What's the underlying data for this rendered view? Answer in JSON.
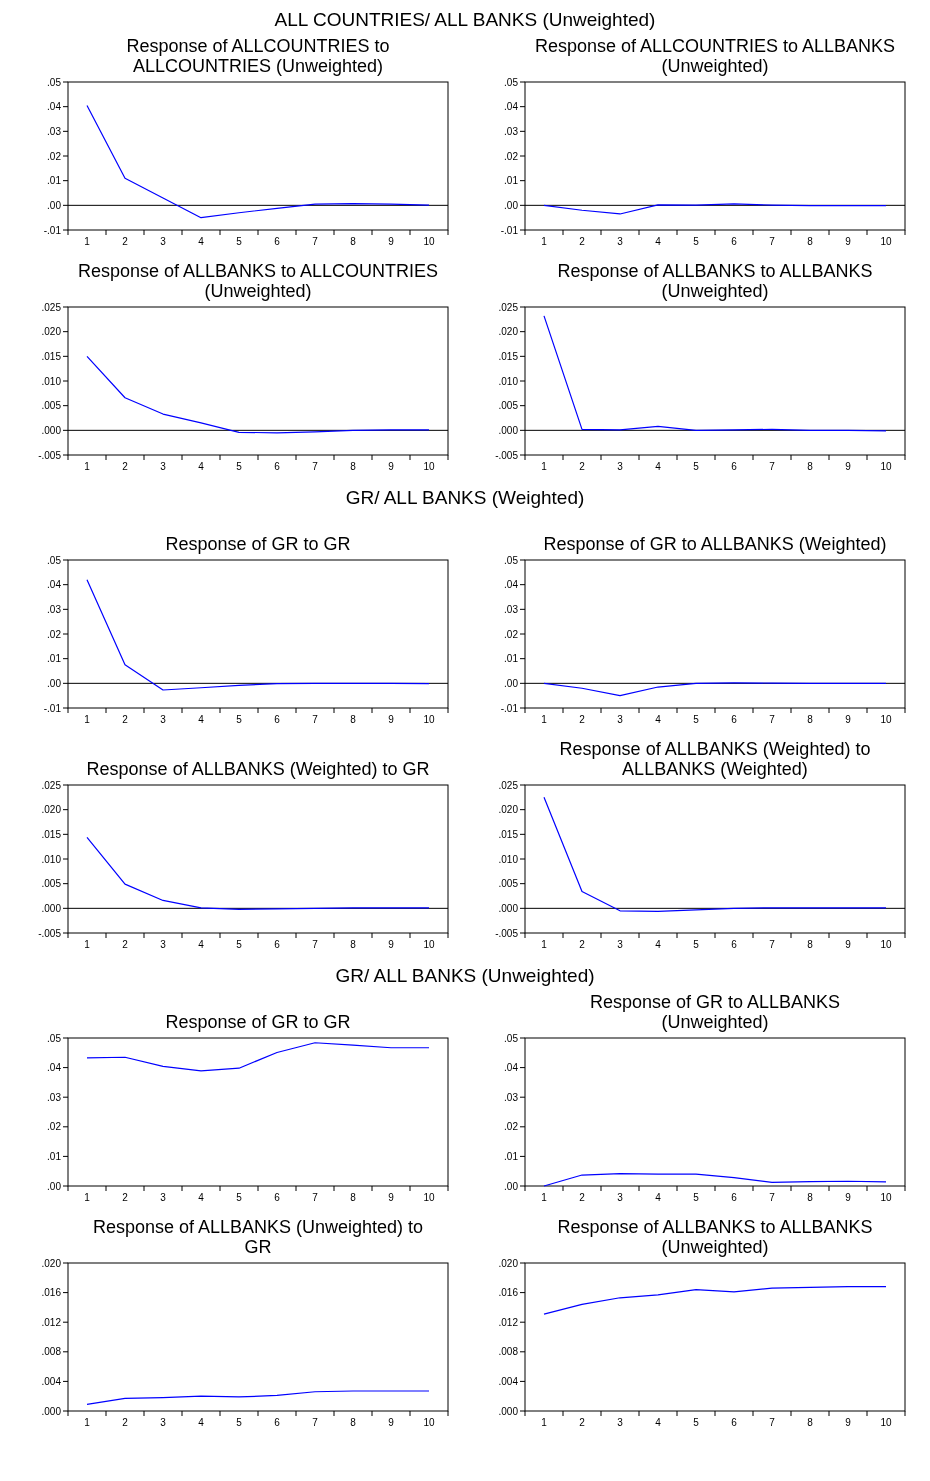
{
  "chart_data": [
    {
      "type": "line",
      "annotations": [
        "ALL COUNTRIES/ ALL BANKS (Unweighted)"
      ],
      "title": "Response of ALLCOUNTRIES to ALLCOUNTRIES (Unweighted)",
      "categories": [
        "1",
        "2",
        "3",
        "4",
        "5",
        "6",
        "7",
        "8",
        "9",
        "10"
      ],
      "series": [
        {
          "color": "#0000ff",
          "values": [
            0.0405,
            0.011,
            0.003,
            -0.005,
            -0.003,
            -0.0012,
            0.0005,
            0.0007,
            0.0005,
            0.0001
          ]
        }
      ],
      "ylim": [
        -0.01,
        0.05
      ],
      "yticks": [
        {
          "value": -0.01,
          "label": "-.01"
        },
        {
          "value": 0,
          "label": ".00"
        },
        {
          "value": 0.01,
          "label": ".01"
        },
        {
          "value": 0.02,
          "label": ".02"
        },
        {
          "value": 0.03,
          "label": ".03"
        },
        {
          "value": 0.04,
          "label": ".04"
        },
        {
          "value": 0.05,
          "label": ".05"
        }
      ],
      "ref_lines": [
        {
          "axis": "y",
          "value": 0,
          "color": "#000000"
        }
      ]
    },
    {
      "type": "line",
      "title": "Response of ALLCOUNTRIES to ALLBANKS (Unweighted)",
      "categories": [
        "1",
        "2",
        "3",
        "4",
        "5",
        "6",
        "7",
        "8",
        "9",
        "10"
      ],
      "series": [
        {
          "color": "#0000ff",
          "values": [
            0,
            -0.002,
            -0.0035,
            0.0002,
            0.0001,
            0.0006,
            0.0001,
            -0.0001,
            -0.0001,
            -0.0001
          ]
        }
      ],
      "ylim": [
        -0.01,
        0.05
      ],
      "yticks": [
        {
          "value": -0.01,
          "label": "-.01"
        },
        {
          "value": 0,
          "label": ".00"
        },
        {
          "value": 0.01,
          "label": ".01"
        },
        {
          "value": 0.02,
          "label": ".02"
        },
        {
          "value": 0.03,
          "label": ".03"
        },
        {
          "value": 0.04,
          "label": ".04"
        },
        {
          "value": 0.05,
          "label": ".05"
        }
      ],
      "ref_lines": [
        {
          "axis": "y",
          "value": 0,
          "color": "#000000"
        }
      ]
    },
    {
      "type": "line",
      "title": "Response of ALLBANKS to ALLCOUNTRIES (Unweighted)",
      "categories": [
        "1",
        "2",
        "3",
        "4",
        "5",
        "6",
        "7",
        "8",
        "9",
        "10"
      ],
      "series": [
        {
          "color": "#0000ff",
          "values": [
            0.015,
            0.0066,
            0.0033,
            0.0015,
            -0.0004,
            -0.0005,
            -0.0003,
            0,
            0.0001,
            0.0001
          ]
        }
      ],
      "ylim": [
        -0.005,
        0.025
      ],
      "yticks": [
        {
          "value": -0.005,
          "label": "-.005"
        },
        {
          "value": 0,
          "label": ".000"
        },
        {
          "value": 0.005,
          "label": ".005"
        },
        {
          "value": 0.01,
          "label": ".010"
        },
        {
          "value": 0.015,
          "label": ".015"
        },
        {
          "value": 0.02,
          "label": ".020"
        },
        {
          "value": 0.025,
          "label": ".025"
        }
      ],
      "ref_lines": [
        {
          "axis": "y",
          "value": 0,
          "color": "#000000"
        }
      ]
    },
    {
      "type": "line",
      "title": "Response of ALLBANKS to ALLBANKS (Unweighted)",
      "categories": [
        "1",
        "2",
        "3",
        "4",
        "5",
        "6",
        "7",
        "8",
        "9",
        "10"
      ],
      "series": [
        {
          "color": "#0000ff",
          "values": [
            0.0232,
            0.0002,
            0.0001,
            0.0008,
            0,
            0.0001,
            0.0002,
            0,
            0,
            -0.0001
          ]
        }
      ],
      "ylim": [
        -0.005,
        0.025
      ],
      "yticks": [
        {
          "value": -0.005,
          "label": "-.005"
        },
        {
          "value": 0,
          "label": ".000"
        },
        {
          "value": 0.005,
          "label": ".005"
        },
        {
          "value": 0.01,
          "label": ".010"
        },
        {
          "value": 0.015,
          "label": ".015"
        },
        {
          "value": 0.02,
          "label": ".020"
        },
        {
          "value": 0.025,
          "label": ".025"
        }
      ],
      "ref_lines": [
        {
          "axis": "y",
          "value": 0,
          "color": "#000000"
        }
      ]
    },
    {
      "type": "line",
      "annotations": [
        "GR/ ALL BANKS (Weighted)"
      ],
      "title": "Response of GR to GR",
      "categories": [
        "1",
        "2",
        "3",
        "4",
        "5",
        "6",
        "7",
        "8",
        "9",
        "10"
      ],
      "series": [
        {
          "color": "#0000ff",
          "values": [
            0.042,
            0.0075,
            -0.0027,
            -0.0018,
            -0.0008,
            -0.0001,
            0,
            0,
            0,
            -0.0001
          ]
        }
      ],
      "ylim": [
        -0.01,
        0.05
      ],
      "yticks": [
        {
          "value": -0.01,
          "label": "-.01"
        },
        {
          "value": 0,
          "label": ".00"
        },
        {
          "value": 0.01,
          "label": ".01"
        },
        {
          "value": 0.02,
          "label": ".02"
        },
        {
          "value": 0.03,
          "label": ".03"
        },
        {
          "value": 0.04,
          "label": ".04"
        },
        {
          "value": 0.05,
          "label": ".05"
        }
      ],
      "ref_lines": [
        {
          "axis": "y",
          "value": 0,
          "color": "#000000"
        }
      ]
    },
    {
      "type": "line",
      "title": "Response of GR to ALLBANKS (Weighted)",
      "categories": [
        "1",
        "2",
        "3",
        "4",
        "5",
        "6",
        "7",
        "8",
        "9",
        "10"
      ],
      "series": [
        {
          "color": "#0000ff",
          "values": [
            0,
            -0.002,
            -0.005,
            -0.0015,
            0,
            0.0002,
            0.0001,
            0,
            0,
            0
          ]
        }
      ],
      "ylim": [
        -0.01,
        0.05
      ],
      "yticks": [
        {
          "value": -0.01,
          "label": "-.01"
        },
        {
          "value": 0,
          "label": ".00"
        },
        {
          "value": 0.01,
          "label": ".01"
        },
        {
          "value": 0.02,
          "label": ".02"
        },
        {
          "value": 0.03,
          "label": ".03"
        },
        {
          "value": 0.04,
          "label": ".04"
        },
        {
          "value": 0.05,
          "label": ".05"
        }
      ],
      "ref_lines": [
        {
          "axis": "y",
          "value": 0,
          "color": "#000000"
        }
      ]
    },
    {
      "type": "line",
      "title": "Response of ALLBANKS (Weighted) to GR",
      "categories": [
        "1",
        "2",
        "3",
        "4",
        "5",
        "6",
        "7",
        "8",
        "9",
        "10"
      ],
      "series": [
        {
          "color": "#0000ff",
          "values": [
            0.0144,
            0.0049,
            0.0016,
            0.0001,
            -0.0002,
            -0.0001,
            0,
            0.0001,
            0.0001,
            0.0001
          ]
        }
      ],
      "ylim": [
        -0.005,
        0.025
      ],
      "yticks": [
        {
          "value": -0.005,
          "label": "-.005"
        },
        {
          "value": 0,
          "label": ".000"
        },
        {
          "value": 0.005,
          "label": ".005"
        },
        {
          "value": 0.01,
          "label": ".010"
        },
        {
          "value": 0.015,
          "label": ".015"
        },
        {
          "value": 0.02,
          "label": ".020"
        },
        {
          "value": 0.025,
          "label": ".025"
        }
      ],
      "ref_lines": [
        {
          "axis": "y",
          "value": 0,
          "color": "#000000"
        }
      ]
    },
    {
      "type": "line",
      "title": "Response of ALLBANKS (Weighted) to ALLBANKS (Weighted)",
      "categories": [
        "1",
        "2",
        "3",
        "4",
        "5",
        "6",
        "7",
        "8",
        "9",
        "10"
      ],
      "series": [
        {
          "color": "#0000ff",
          "values": [
            0.0225,
            0.0034,
            -0.0005,
            -0.0006,
            -0.0003,
            0,
            0.0001,
            0.0001,
            0.0001,
            0.0001
          ]
        }
      ],
      "ylim": [
        -0.005,
        0.025
      ],
      "yticks": [
        {
          "value": -0.005,
          "label": "-.005"
        },
        {
          "value": 0,
          "label": ".000"
        },
        {
          "value": 0.005,
          "label": ".005"
        },
        {
          "value": 0.01,
          "label": ".010"
        },
        {
          "value": 0.015,
          "label": ".015"
        },
        {
          "value": 0.02,
          "label": ".020"
        },
        {
          "value": 0.025,
          "label": ".025"
        }
      ],
      "ref_lines": [
        {
          "axis": "y",
          "value": 0,
          "color": "#000000"
        }
      ]
    },
    {
      "type": "line",
      "annotations": [
        "GR/ ALL BANKS (Unweighted)"
      ],
      "title": "Response of GR to GR",
      "categories": [
        "1",
        "2",
        "3",
        "4",
        "5",
        "6",
        "7",
        "8",
        "9",
        "10"
      ],
      "series": [
        {
          "color": "#0000ff",
          "values": [
            0.0433,
            0.0435,
            0.0404,
            0.0389,
            0.0398,
            0.0451,
            0.0484,
            0.0476,
            0.0467,
            0.0467
          ]
        }
      ],
      "ylim": [
        0,
        0.05
      ],
      "yticks": [
        {
          "value": 0,
          "label": ".00"
        },
        {
          "value": 0.01,
          "label": ".01"
        },
        {
          "value": 0.02,
          "label": ".02"
        },
        {
          "value": 0.03,
          "label": ".03"
        },
        {
          "value": 0.04,
          "label": ".04"
        },
        {
          "value": 0.05,
          "label": ".05"
        }
      ]
    },
    {
      "type": "line",
      "title": "Response of GR to ALLBANKS (Unweighted)",
      "categories": [
        "1",
        "2",
        "3",
        "4",
        "5",
        "6",
        "7",
        "8",
        "9",
        "10"
      ],
      "series": [
        {
          "color": "#0000ff",
          "values": [
            0,
            0.0037,
            0.0042,
            0.004,
            0.004,
            0.0028,
            0.0012,
            0.0015,
            0.0016,
            0.0014
          ]
        }
      ],
      "ylim": [
        0,
        0.05
      ],
      "yticks": [
        {
          "value": 0,
          "label": ".00"
        },
        {
          "value": 0.01,
          "label": ".01"
        },
        {
          "value": 0.02,
          "label": ".02"
        },
        {
          "value": 0.03,
          "label": ".03"
        },
        {
          "value": 0.04,
          "label": ".04"
        },
        {
          "value": 0.05,
          "label": ".05"
        }
      ]
    },
    {
      "type": "line",
      "title": "Response of ALLBANKS (Unweighted) to GR",
      "categories": [
        "1",
        "2",
        "3",
        "4",
        "5",
        "6",
        "7",
        "8",
        "9",
        "10"
      ],
      "series": [
        {
          "color": "#0000ff",
          "values": [
            0.0009,
            0.0017,
            0.0018,
            0.002,
            0.0019,
            0.0021,
            0.0026,
            0.0027,
            0.0027,
            0.0027
          ]
        }
      ],
      "ylim": [
        0,
        0.02
      ],
      "yticks": [
        {
          "value": 0,
          "label": ".000"
        },
        {
          "value": 0.004,
          "label": ".004"
        },
        {
          "value": 0.008,
          "label": ".008"
        },
        {
          "value": 0.012,
          "label": ".012"
        },
        {
          "value": 0.016,
          "label": ".016"
        },
        {
          "value": 0.02,
          "label": ".020"
        }
      ]
    },
    {
      "type": "line",
      "title": "Response of ALLBANKS to ALLBANKS (Unweighted)",
      "categories": [
        "1",
        "2",
        "3",
        "4",
        "5",
        "6",
        "7",
        "8",
        "9",
        "10"
      ],
      "series": [
        {
          "color": "#0000ff",
          "values": [
            0.0131,
            0.0144,
            0.0153,
            0.0157,
            0.0164,
            0.0161,
            0.0166,
            0.0167,
            0.0168,
            0.0168
          ]
        }
      ],
      "ylim": [
        0,
        0.02
      ],
      "yticks": [
        {
          "value": 0,
          "label": ".000"
        },
        {
          "value": 0.004,
          "label": ".004"
        },
        {
          "value": 0.008,
          "label": ".008"
        },
        {
          "value": 0.012,
          "label": ".012"
        },
        {
          "value": 0.016,
          "label": ".016"
        },
        {
          "value": 0.02,
          "label": ".020"
        }
      ]
    }
  ]
}
